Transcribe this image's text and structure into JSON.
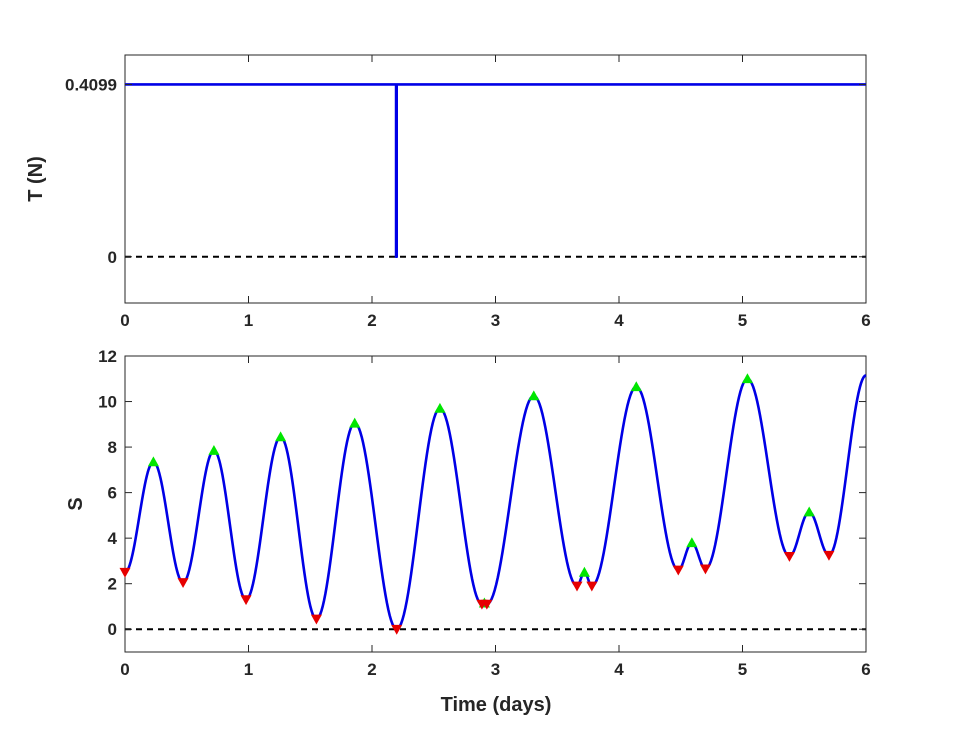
{
  "chart_data": [
    {
      "type": "line",
      "xlabel": "",
      "ylabel": "T (N)",
      "xlim": [
        0,
        6
      ],
      "ylim": [
        -0.11,
        0.48
      ],
      "xticks": [
        0,
        1,
        2,
        3,
        4,
        5,
        6
      ],
      "xtick_labels": [
        "0",
        "1",
        "2",
        "3",
        "4",
        "5",
        "6"
      ],
      "yticks": [
        0,
        0.4099
      ],
      "ytick_labels": [
        "0",
        "0.4099"
      ],
      "grid": false,
      "legend": null,
      "series": [
        {
          "style": "solid",
          "color": "#0000e6",
          "x": [
            0,
            2.195,
            2.195,
            2.2,
            2.2,
            6.0
          ],
          "y": [
            0.4099,
            0.4099,
            0,
            0,
            0.4099,
            0.4099
          ]
        },
        {
          "style": "dashed",
          "color": "#000000",
          "x": [
            0,
            6
          ],
          "y": [
            0,
            0
          ]
        }
      ]
    },
    {
      "type": "line",
      "xlabel": "Time (days)",
      "ylabel": "S",
      "xlim": [
        0,
        6
      ],
      "ylim": [
        -1,
        12
      ],
      "xticks": [
        0,
        1,
        2,
        3,
        4,
        5,
        6
      ],
      "xtick_labels": [
        "0",
        "1",
        "2",
        "3",
        "4",
        "5",
        "6"
      ],
      "yticks": [
        0,
        2,
        4,
        6,
        8,
        10,
        12
      ],
      "ytick_labels": [
        "0",
        "2",
        "4",
        "6",
        "8",
        "10",
        "12"
      ],
      "grid": false,
      "legend": null,
      "series": [
        {
          "style": "solid",
          "color": "#0000e6",
          "extrema": [
            [
              0.0,
              2.5
            ],
            [
              0.23,
              7.35
            ],
            [
              0.47,
              2.05
            ],
            [
              0.72,
              7.85
            ],
            [
              0.98,
              1.3
            ],
            [
              1.26,
              8.45
            ],
            [
              1.55,
              0.45
            ],
            [
              1.86,
              9.05
            ],
            [
              2.2,
              0.0
            ],
            [
              2.55,
              9.7
            ],
            [
              2.89,
              1.1
            ],
            [
              2.91,
              1.15
            ],
            [
              2.93,
              1.1
            ],
            [
              3.31,
              10.25
            ],
            [
              3.66,
              1.9
            ],
            [
              3.72,
              2.5
            ],
            [
              3.78,
              1.9
            ],
            [
              4.14,
              10.65
            ],
            [
              4.48,
              2.6
            ],
            [
              4.59,
              3.8
            ],
            [
              4.7,
              2.65
            ],
            [
              5.04,
              11.0
            ],
            [
              5.38,
              3.2
            ],
            [
              5.54,
              5.15
            ],
            [
              5.7,
              3.25
            ],
            [
              6.0,
              11.15
            ]
          ]
        },
        {
          "style": "dashed",
          "color": "#000000",
          "x": [
            0,
            6
          ],
          "y": [
            0,
            0
          ]
        }
      ],
      "maxima": {
        "marker": "triangle-up",
        "color": "#00e600",
        "x": [
          0.23,
          0.72,
          1.26,
          1.86,
          2.55,
          2.91,
          3.31,
          3.72,
          4.14,
          4.59,
          5.04,
          5.54
        ],
        "y": [
          7.35,
          7.85,
          8.45,
          9.05,
          9.7,
          1.15,
          10.25,
          2.5,
          10.65,
          3.8,
          11.0,
          5.15
        ]
      },
      "minima": {
        "marker": "triangle-down",
        "color": "#e60000",
        "x": [
          0.0,
          0.47,
          0.98,
          1.55,
          2.2,
          2.89,
          2.93,
          3.66,
          3.78,
          4.48,
          4.7,
          5.38,
          5.7
        ],
        "y": [
          2.5,
          2.05,
          1.3,
          0.45,
          0.0,
          1.1,
          1.1,
          1.9,
          1.9,
          2.6,
          2.65,
          3.2,
          3.25
        ]
      }
    }
  ]
}
